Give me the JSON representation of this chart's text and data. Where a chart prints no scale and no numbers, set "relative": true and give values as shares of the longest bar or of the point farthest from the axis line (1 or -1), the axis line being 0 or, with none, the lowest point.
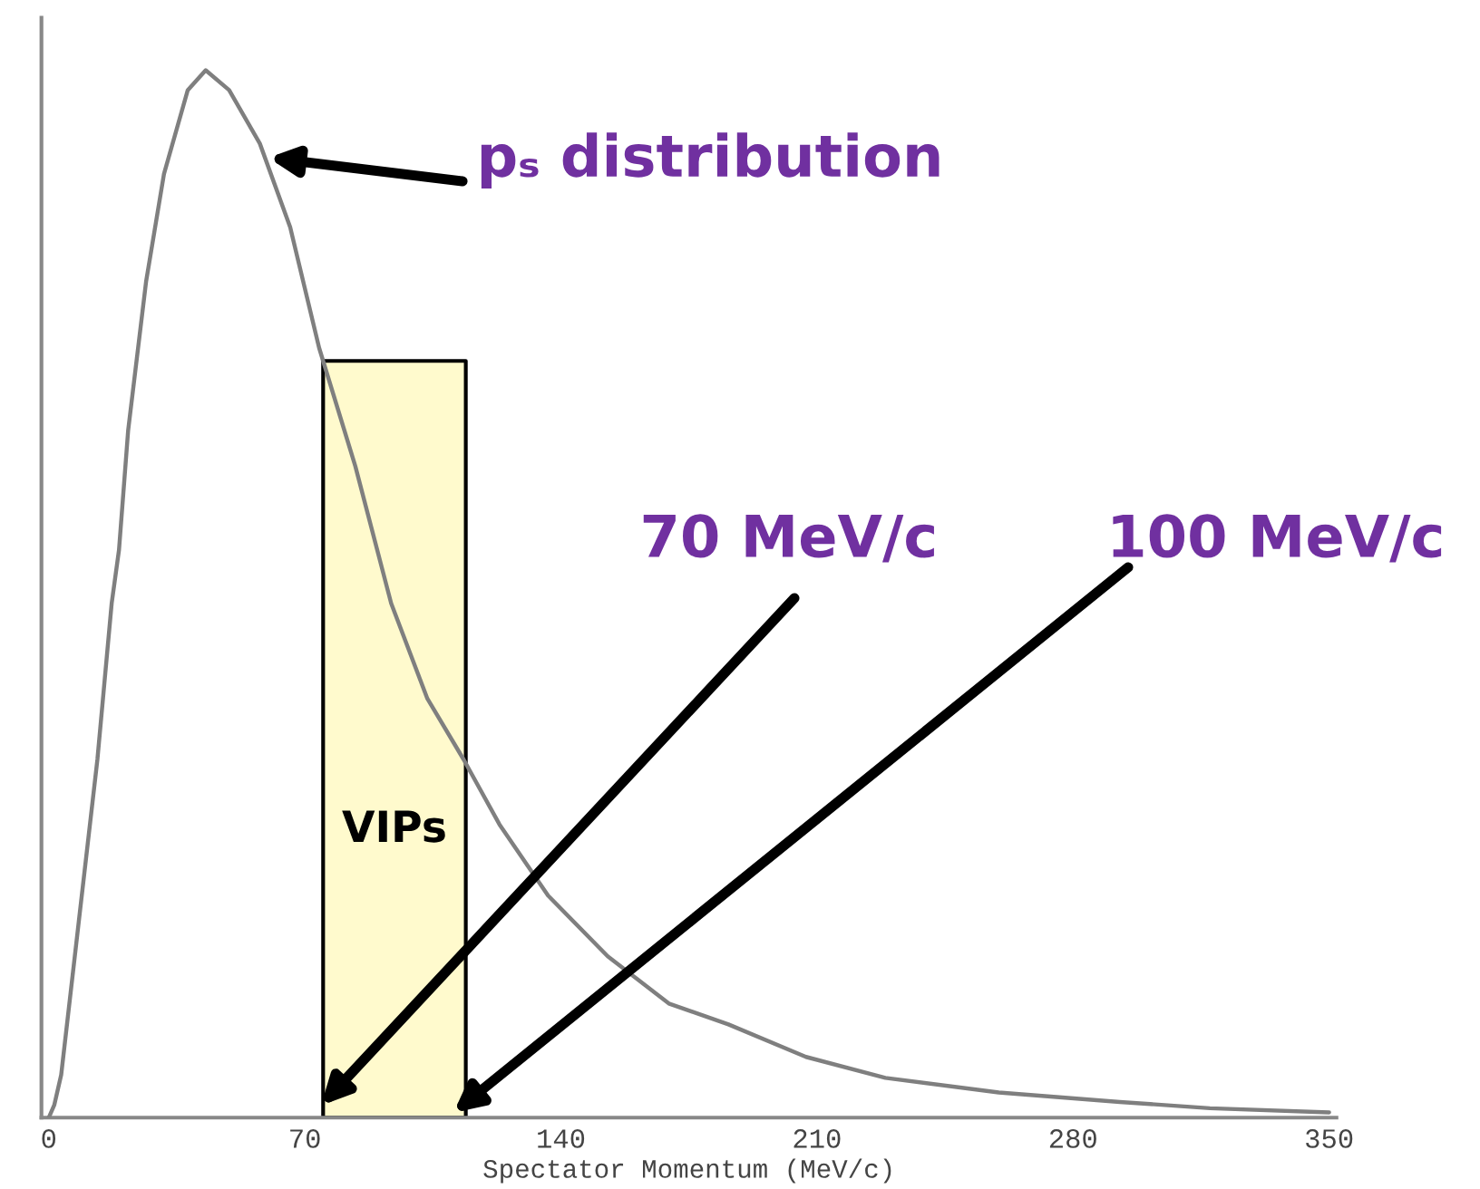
{
  "chart_data": {
    "type": "line",
    "relative": true,
    "xlabel": "Spectator Momentum (MeV/c)",
    "xlim": [
      -2,
      352
    ],
    "xticks": [
      0,
      70,
      140,
      210,
      280,
      350
    ],
    "grid": false,
    "legend": false,
    "marker": "none",
    "line_style": "solid",
    "series": [
      {
        "color": "#7f7f7f",
        "x": [
          0,
          1.5,
          3.4,
          13.3,
          17.2,
          19.2,
          21.7,
          26.6,
          31.5,
          38.0,
          42.9,
          49.3,
          57.7,
          66.0,
          73.9,
          83.8,
          93.6,
          103.5,
          113.4,
          123.2,
          136.5,
          152.8,
          169.5,
          185.8,
          207.0,
          228.7,
          259.7,
          292.8,
          317.4,
          350
        ],
        "values": [
          0,
          0.012,
          0.041,
          0.342,
          0.491,
          0.542,
          0.656,
          0.798,
          0.901,
          0.981,
          1.0,
          0.981,
          0.93,
          0.85,
          0.735,
          0.622,
          0.491,
          0.4,
          0.342,
          0.28,
          0.212,
          0.154,
          0.109,
          0.089,
          0.058,
          0.038,
          0.024,
          0.015,
          0.009,
          0.005
        ]
      }
    ],
    "bands": [
      {
        "axis": "x",
        "from": 75,
        "to": 114,
        "label": "VIPs",
        "color": "#fffacd"
      }
    ],
    "annotations": [
      "pₛ distribution",
      "70 MeV/c",
      "100 MeV/c"
    ]
  }
}
